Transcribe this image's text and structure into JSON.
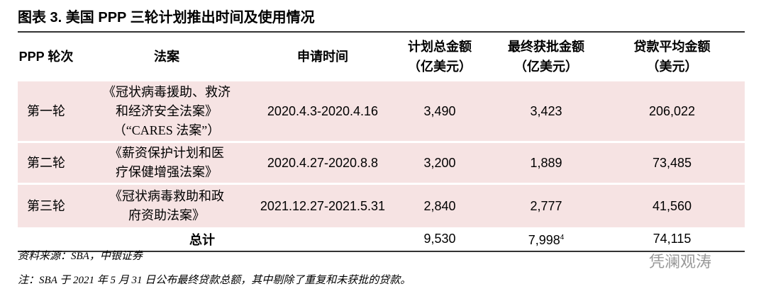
{
  "title": "图表 3. 美国 PPP 三轮计划推出时间及使用情况",
  "table": {
    "header": [
      [
        "PPP 轮次"
      ],
      [
        "法案"
      ],
      [
        "申请时间"
      ],
      [
        "计划总金额",
        "（亿美元）"
      ],
      [
        "最终获批金额",
        "（亿美元）"
      ],
      [
        "贷款平均金额",
        "（美元）"
      ]
    ],
    "rows": [
      [
        "第一轮",
        [
          "《冠状病毒援助、救济",
          "和经济安全法案》",
          "（“CARES 法案”）"
        ],
        "2020.4.3-2020.4.16",
        "3,490",
        "3,423",
        "206,022"
      ],
      [
        "第二轮",
        [
          "《薪资保护计划和医",
          "疗保健增强法案》"
        ],
        "2020.4.27-2020.8.8",
        "3,200",
        "1,889",
        "73,485"
      ],
      [
        "第三轮",
        [
          "《冠状病毒救助和政",
          "府资助法案》"
        ],
        "2021.12.27-2021.5.31",
        "2,840",
        "2,777",
        "41,560"
      ]
    ],
    "total": {
      "label": "总计",
      "planned": "9,530",
      "approved": "7,998",
      "approved_note": "4",
      "average": "74,115"
    }
  },
  "source": "资料来源：SBA，中银证券",
  "note": "注：SBA 于 2021 年 5 月 31 日公布最终贷款总额，其中剔除了重复和未获批的贷款。",
  "watermark": "凭澜观涛"
}
